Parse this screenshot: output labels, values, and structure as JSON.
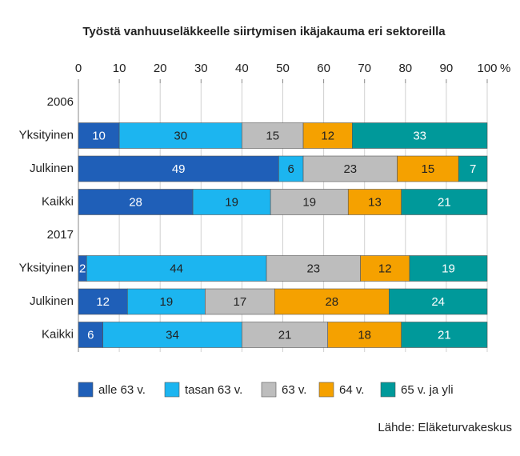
{
  "chart_data": {
    "type": "stacked_barh",
    "title": "Työstä vanhuuseläkkeelle siirtymisen ikäjakauma eri sektoreilla",
    "categories": [
      "2006",
      "Yksityinen",
      "Julkinen",
      "Kaikki",
      "2017",
      "Yksityinen",
      "Julkinen",
      "Kaikki"
    ],
    "series": [
      {
        "name": "alle 63 v.",
        "color": "#1f5fb8",
        "values": [
          null,
          10,
          49,
          28,
          null,
          2,
          12,
          6
        ]
      },
      {
        "name": "tasan 63 v.",
        "color": "#1cb5f0",
        "values": [
          null,
          30,
          6,
          19,
          null,
          44,
          19,
          34
        ]
      },
      {
        "name": "63 v.",
        "color": "#bdbdbd",
        "values": [
          null,
          15,
          23,
          19,
          null,
          23,
          17,
          21
        ]
      },
      {
        "name": "64 v.",
        "color": "#f5a100",
        "values": [
          null,
          12,
          15,
          13,
          null,
          12,
          28,
          18
        ]
      },
      {
        "name": "65 v. ja yli",
        "color": "#00999a",
        "values": [
          null,
          33,
          7,
          21,
          null,
          19,
          24,
          21
        ]
      }
    ],
    "xlim": [
      0,
      100
    ],
    "xticks": [
      0,
      10,
      20,
      30,
      40,
      50,
      60,
      70,
      80,
      90,
      100
    ],
    "x_unit": "%",
    "grid": true,
    "legend": "bottom",
    "source": "Lähde: Eläketurvakeskus"
  }
}
